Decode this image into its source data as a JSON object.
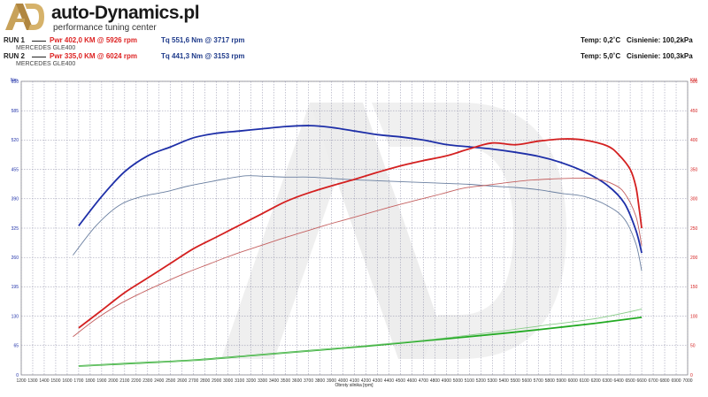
{
  "header": {
    "brand": "auto-Dynamics.pl",
    "tagline": "performance tuning center"
  },
  "runs": [
    {
      "label": "RUN 1",
      "car": "MERCEDES GLE400",
      "power": "Pwr 402,0 KM @ 5926 rpm",
      "torque": "Tq 551,6 Nm @ 3717 rpm",
      "temp": "Temp: 0,2˚C",
      "pressure": "Cisnienie: 100,2kPa"
    },
    {
      "label": "RUN 2",
      "car": "MERCEDES GLE400",
      "power": "Pwr 335,0 KM @ 6024 rpm",
      "torque": "Tq 441,3 Nm @ 3153 rpm",
      "temp": "Temp: 5,0˚C",
      "pressure": "Cisnienie: 100,3kPa"
    }
  ],
  "colors": {
    "power_run1": "#d42020",
    "power_run2": "#c46060",
    "torque_run1": "#1e2fa8",
    "torque_run2": "#6a7fa0",
    "loss_run1": "#22aa22",
    "loss_run2": "#88cc88"
  },
  "chart_data": {
    "type": "line",
    "title": "",
    "xlabel": "Obroty silnika [rpm]",
    "ylabel_left": "Nm",
    "ylabel_right": "KM",
    "xlim": [
      1200,
      7000
    ],
    "ylim_left": [
      0,
      650
    ],
    "ylim_right": [
      0,
      500
    ],
    "x_ticks": [
      1200,
      1300,
      1400,
      1500,
      1600,
      1700,
      1800,
      1900,
      2000,
      2100,
      2200,
      2300,
      2400,
      2500,
      2600,
      2700,
      2800,
      2900,
      3000,
      3100,
      3200,
      3300,
      3400,
      3500,
      3600,
      3700,
      3800,
      3900,
      4000,
      4100,
      4200,
      4300,
      4400,
      4500,
      4600,
      4700,
      4800,
      4900,
      5000,
      5100,
      5200,
      5300,
      5400,
      5500,
      5600,
      5700,
      5800,
      5900,
      6000,
      6100,
      6200,
      6300,
      6400,
      6500,
      6600,
      6700,
      6800,
      6900,
      7000
    ],
    "y_ticks_left": [
      0,
      65,
      130,
      195,
      260,
      325,
      390,
      455,
      520,
      585,
      650
    ],
    "y_ticks_right": [
      0,
      50,
      100,
      150,
      200,
      250,
      300,
      350,
      400,
      450,
      500
    ],
    "grid": true,
    "series": [
      {
        "axis": "left",
        "color": "#1e2fa8",
        "width": 1.8,
        "x": [
          1700,
          1900,
          2100,
          2300,
          2500,
          2700,
          2900,
          3100,
          3300,
          3500,
          3717,
          3900,
          4100,
          4300,
          4500,
          4700,
          4900,
          5100,
          5300,
          5500,
          5700,
          5900,
          6100,
          6300,
          6450,
          6550,
          6600
        ],
        "y": [
          330,
          395,
          450,
          485,
          505,
          525,
          535,
          540,
          545,
          550,
          552,
          548,
          540,
          532,
          527,
          520,
          510,
          505,
          500,
          493,
          484,
          470,
          450,
          420,
          380,
          320,
          270
        ]
      },
      {
        "axis": "left",
        "color": "#6a7fa0",
        "width": 0.9,
        "x": [
          1650,
          1850,
          2050,
          2250,
          2450,
          2650,
          2850,
          3000,
          3153,
          3300,
          3500,
          3700,
          3900,
          4100,
          4300,
          4500,
          4700,
          4900,
          5100,
          5300,
          5500,
          5700,
          5900,
          6100,
          6300,
          6450,
          6550,
          6600
        ],
        "y": [
          265,
          330,
          375,
          395,
          405,
          418,
          428,
          435,
          441,
          440,
          438,
          438,
          435,
          432,
          430,
          428,
          426,
          424,
          422,
          418,
          415,
          410,
          402,
          395,
          375,
          345,
          290,
          230
        ]
      },
      {
        "axis": "right",
        "color": "#d42020",
        "width": 1.8,
        "x": [
          1700,
          1900,
          2100,
          2300,
          2500,
          2700,
          2900,
          3100,
          3300,
          3500,
          3700,
          3900,
          4100,
          4300,
          4500,
          4700,
          4900,
          5100,
          5300,
          5500,
          5700,
          5926,
          6100,
          6300,
          6400,
          6500,
          6550,
          6580,
          6600
        ],
        "y": [
          80,
          110,
          140,
          165,
          190,
          215,
          235,
          255,
          275,
          295,
          310,
          322,
          333,
          345,
          356,
          365,
          373,
          385,
          395,
          392,
          398,
          402,
          400,
          390,
          375,
          350,
          320,
          280,
          250
        ]
      },
      {
        "axis": "right",
        "color": "#c46060",
        "width": 0.9,
        "x": [
          1650,
          1850,
          2050,
          2250,
          2450,
          2650,
          2850,
          3050,
          3250,
          3450,
          3650,
          3850,
          4050,
          4250,
          4450,
          4650,
          4850,
          5050,
          5250,
          5450,
          5650,
          5850,
          6024,
          6200,
          6350,
          6450,
          6550,
          6600
        ],
        "y": [
          65,
          95,
          120,
          140,
          158,
          175,
          190,
          205,
          218,
          231,
          243,
          255,
          266,
          277,
          288,
          298,
          308,
          318,
          323,
          328,
          332,
          334,
          335,
          334,
          325,
          310,
          270,
          220
        ]
      },
      {
        "axis": "right",
        "color": "#22aa22",
        "width": 1.8,
        "x": [
          1700,
          2200,
          2700,
          3200,
          3700,
          4200,
          4700,
          5200,
          5700,
          6200,
          6600
        ],
        "y": [
          15,
          20,
          25,
          33,
          41,
          49,
          58,
          67,
          77,
          88,
          98
        ]
      },
      {
        "axis": "right",
        "color": "#88cc88",
        "width": 0.9,
        "x": [
          1700,
          2200,
          2700,
          3200,
          3700,
          4200,
          4700,
          5200,
          5700,
          6200,
          6600
        ],
        "y": [
          15,
          20,
          25,
          33,
          41,
          50,
          59,
          70,
          83,
          96,
          112
        ]
      }
    ]
  }
}
